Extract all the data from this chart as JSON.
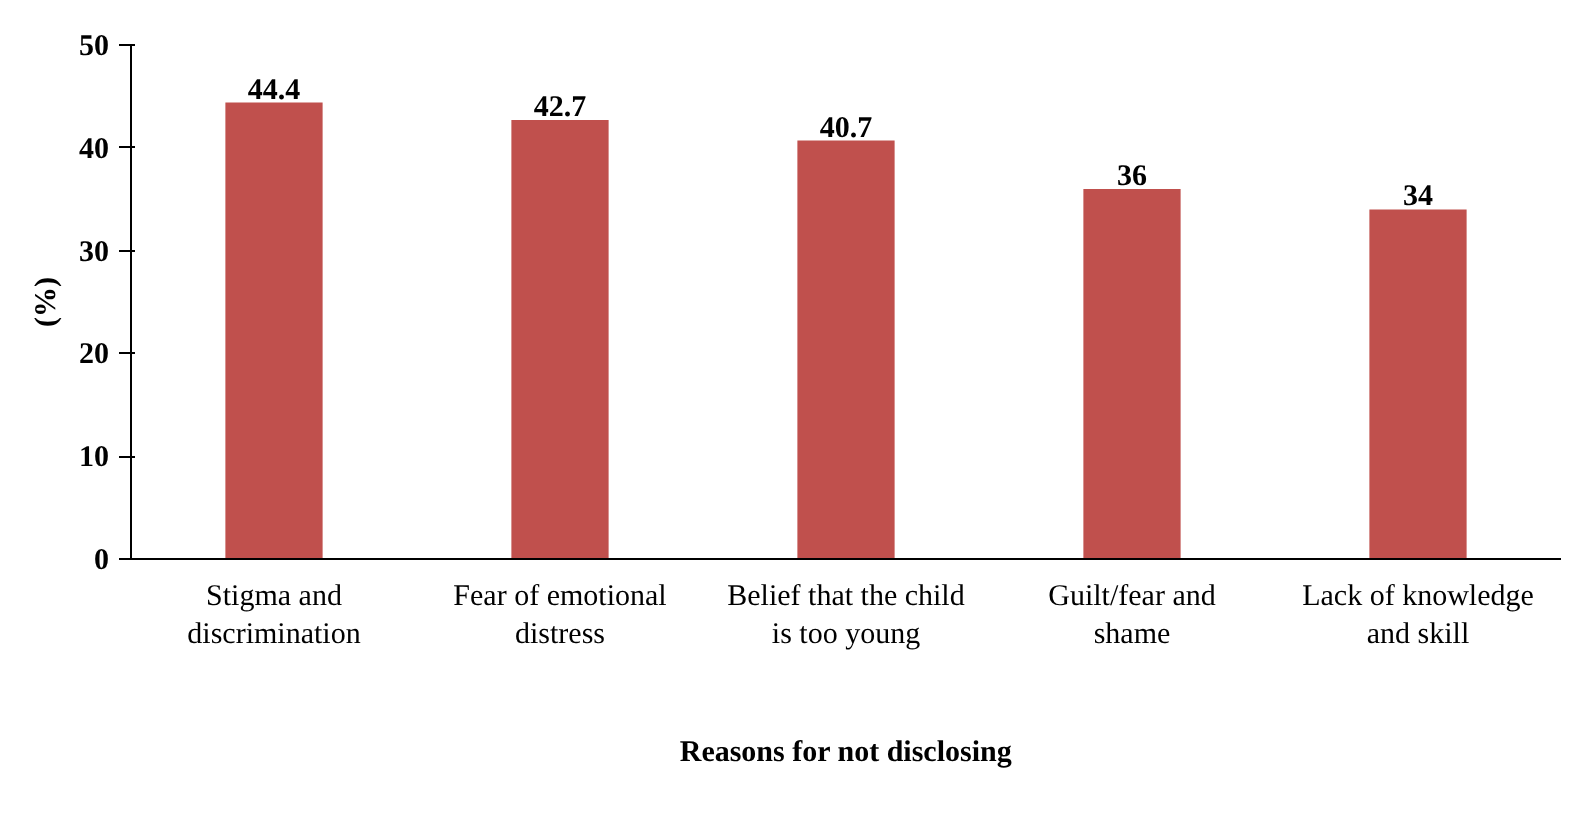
{
  "chart_data": {
    "type": "bar",
    "xlabel": "Reasons for not disclosing",
    "ylabel": "(%)",
    "categories": [
      "Stigma and\ndiscrimination",
      "Fear of emotional\ndistress",
      "Belief that the child\nis too young",
      "Guilt/fear and\nshame",
      "Lack of knowledge\nand skill"
    ],
    "values": [
      44.4,
      42.7,
      40.7,
      36,
      34
    ],
    "color": "#c0504d",
    "ylim": [
      0,
      50
    ],
    "yticks": [
      0,
      10,
      20,
      30,
      40,
      50
    ],
    "grid": false,
    "data_labels": true
  }
}
